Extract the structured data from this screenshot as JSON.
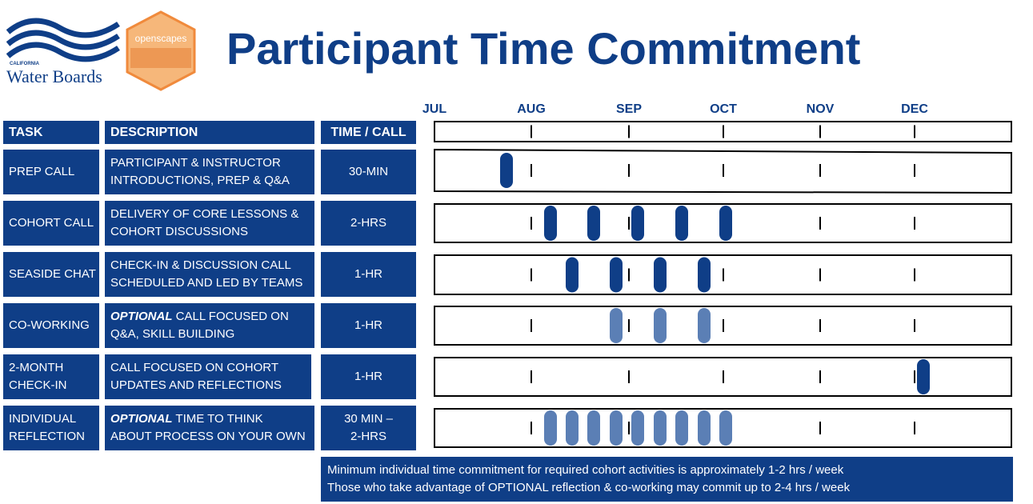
{
  "header": {
    "title": "Participant Time Commitment",
    "logo_state": "CALIFORNIA",
    "logo_org": "Water Boards",
    "logo_partner": "openscapes"
  },
  "table": {
    "headers": [
      "TASK",
      "DESCRIPTION",
      "TIME / CALL"
    ],
    "rows": [
      {
        "task": [
          "PREP CALL"
        ],
        "description": [
          "PARTICIPANT & INSTRUCTOR",
          "INTRODUCTIONS, PREP & Q&A"
        ],
        "time": [
          "30-MIN"
        ]
      },
      {
        "task": [
          "COHORT CALL"
        ],
        "description": [
          "DELIVERY OF CORE LESSONS &",
          "COHORT DISCUSSIONS"
        ],
        "time": [
          "2-HRS"
        ]
      },
      {
        "task": [
          "SEASIDE CHAT"
        ],
        "description": [
          "CHECK-IN & DISCUSSION CALL",
          "SCHEDULED AND LED BY TEAMS"
        ],
        "time": [
          "1-HR"
        ]
      },
      {
        "task": [
          "CO-WORKING"
        ],
        "emphasis": "OPTIONAL",
        "description": [
          "CALL FOCUSED ON",
          "Q&A, SKILL BUILDING"
        ],
        "time": [
          "1-HR"
        ]
      },
      {
        "task": [
          "2-MONTH",
          "CHECK-IN"
        ],
        "description": [
          "CALL FOCUSED ON COHORT",
          "UPDATES AND REFLECTIONS"
        ],
        "time": [
          "1-HR"
        ]
      },
      {
        "task": [
          "INDIVIDUAL",
          "REFLECTION"
        ],
        "emphasis": "OPTIONAL",
        "description": [
          "TIME TO THINK",
          "ABOUT PROCESS ON YOUR OWN"
        ],
        "time": [
          "30 MIN –",
          "2-HRS"
        ]
      }
    ]
  },
  "timeline": {
    "months": [
      "JUL",
      "AUG",
      "SEP",
      "OCT",
      "NOV",
      "DEC"
    ]
  },
  "note": [
    "Minimum individual time commitment for required cohort activities is approximately 1-2 hrs / week",
    "Those who take advantage of OPTIONAL reflection & co-working may commit up to 2-4 hrs / week"
  ]
}
